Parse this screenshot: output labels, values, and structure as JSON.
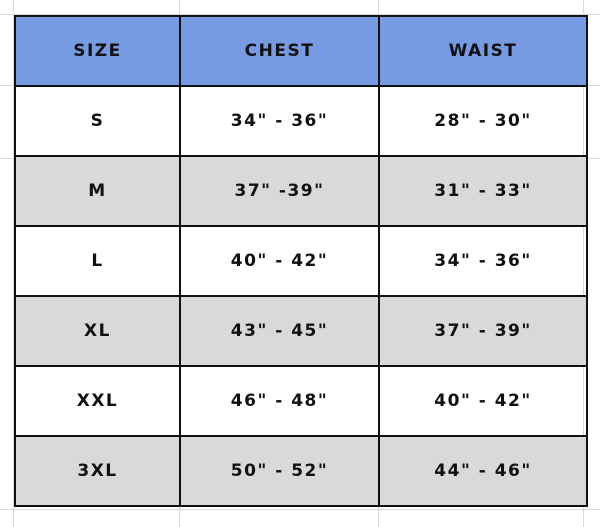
{
  "table": {
    "headers": [
      "SIZE",
      "CHEST",
      "WAIST"
    ],
    "rows": [
      [
        "S",
        "34\" - 36\"",
        "28\" - 30\""
      ],
      [
        "M",
        "37\" -39\"",
        "31\" - 33\""
      ],
      [
        "L",
        "40\" - 42\"",
        "34\" - 36\""
      ],
      [
        "XL",
        "43\" - 45\"",
        "37\" - 39\""
      ],
      [
        "XXL",
        "46\" - 48\"",
        "40\" - 42\""
      ],
      [
        "3XL",
        "50\" - 52\"",
        "44\" - 46\""
      ]
    ]
  },
  "colors": {
    "header_bg": "#779be3",
    "alt_row_bg": "#d9d9d9",
    "border": "#111111"
  }
}
